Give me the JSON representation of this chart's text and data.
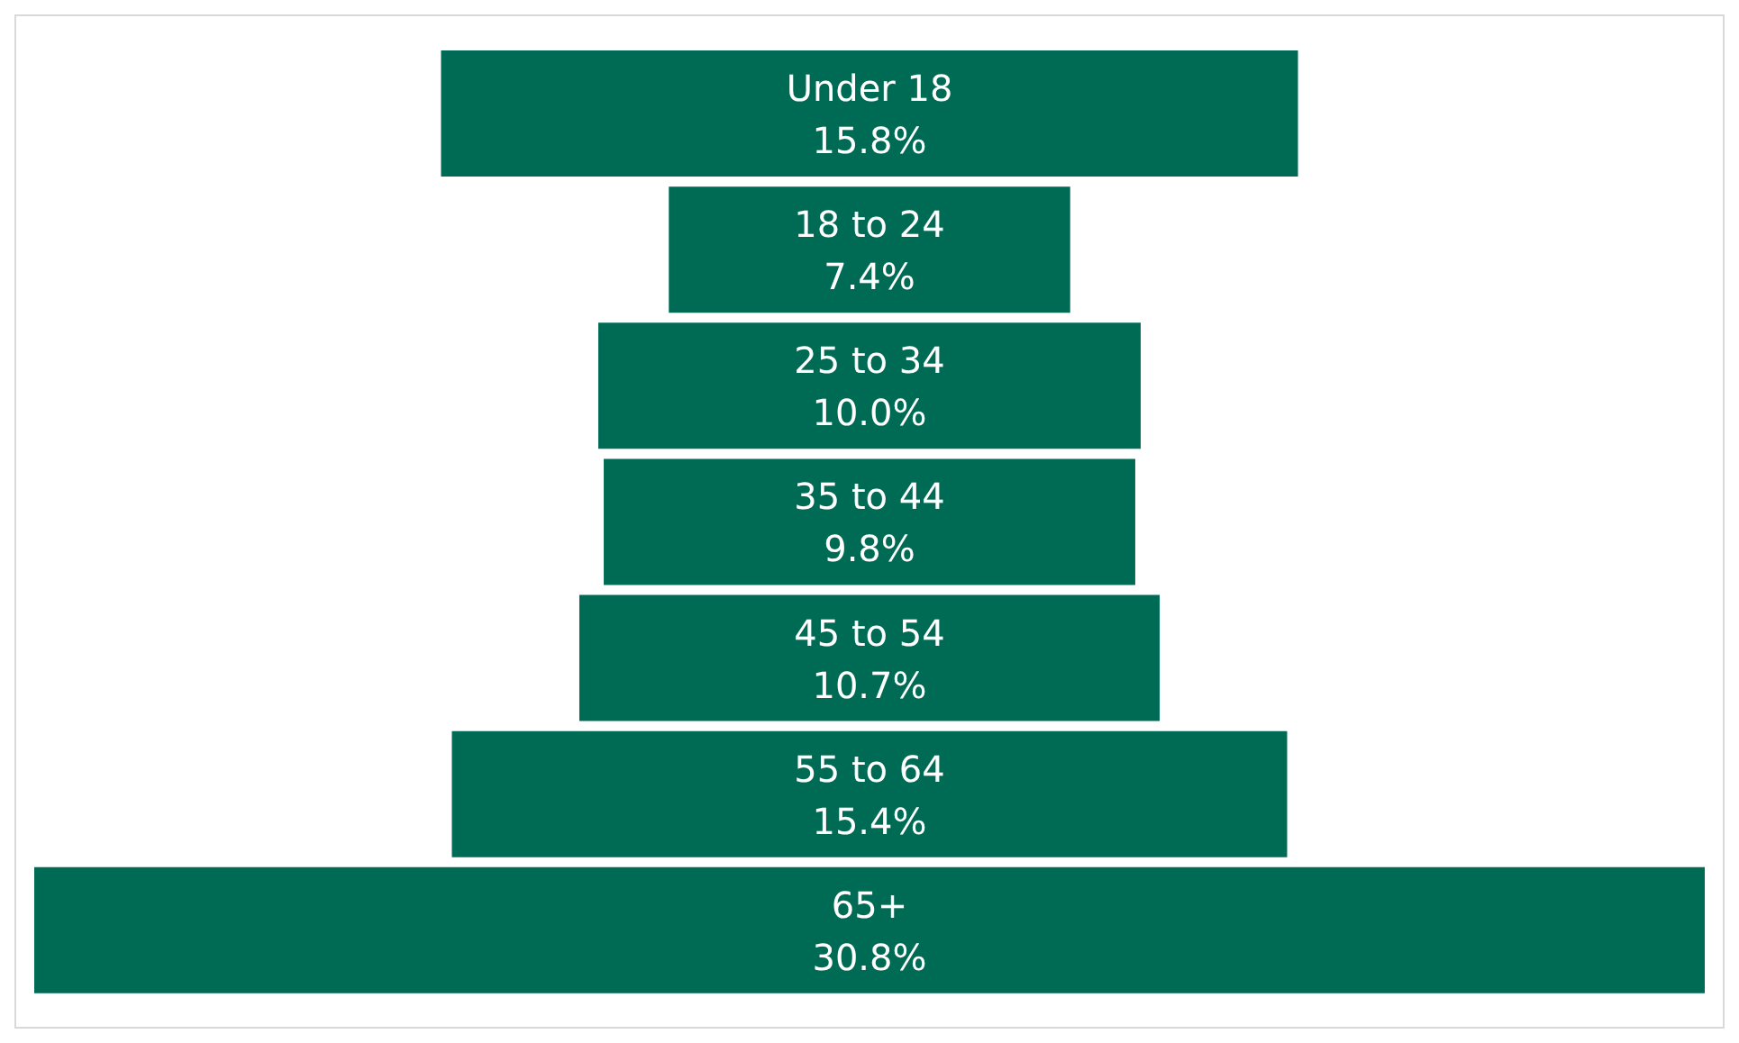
{
  "chart_data": {
    "type": "other",
    "categories": [
      "Under 18",
      "18 to 24",
      "25 to 34",
      "35 to 44",
      "45 to 54",
      "55 to 64",
      "65+"
    ],
    "values": [
      15.8,
      7.4,
      10.0,
      9.8,
      10.7,
      15.4,
      30.8
    ],
    "value_labels": [
      "15.8%",
      "7.4%",
      "10.0%",
      "9.8%",
      "10.7%",
      "15.4%",
      "30.8%"
    ],
    "color": "#006b54"
  }
}
